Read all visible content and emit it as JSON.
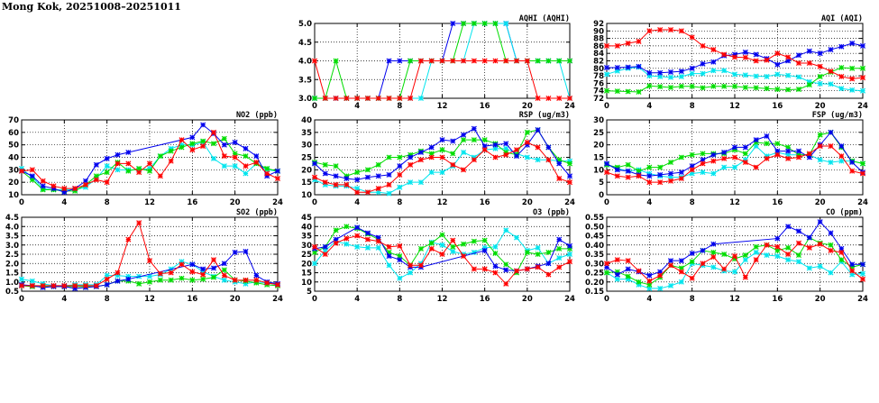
{
  "title": "Mong Kok, 20251008–20251011",
  "colors": {
    "red": "#ff0000",
    "green": "#00dd00",
    "blue": "#0000ee",
    "cyan": "#00e5ee"
  },
  "chart_data": [
    {
      "type": "line",
      "title": "AQHI (AQHI)",
      "xlim": [
        0,
        24
      ],
      "xticks": [
        0,
        4,
        8,
        12,
        16,
        20,
        24
      ],
      "ylim": [
        3.0,
        5.0
      ],
      "yticks": [
        "3.0",
        "3.5",
        "4.0",
        "4.5",
        "5.0"
      ],
      "grid": true,
      "series": [
        {
          "color": "#0000ee",
          "values": [
            3,
            3,
            3,
            3,
            3,
            3,
            3,
            4,
            4,
            4,
            4,
            4,
            4,
            5,
            5,
            5,
            5,
            5,
            5,
            4,
            4,
            4,
            4,
            4,
            4
          ]
        },
        {
          "color": "#00e5ee",
          "values": [
            3,
            3,
            3,
            3,
            3,
            3,
            3,
            3,
            3,
            3,
            3,
            4,
            4,
            4,
            4,
            5,
            5,
            5,
            5,
            4,
            4,
            4,
            4,
            4,
            3
          ]
        },
        {
          "color": "#00dd00",
          "values": [
            3,
            3,
            4,
            3,
            3,
            3,
            3,
            3,
            3,
            4,
            4,
            4,
            4,
            4,
            5,
            5,
            5,
            5,
            4,
            4,
            4,
            4,
            4,
            4,
            4
          ]
        },
        {
          "color": "#ff0000",
          "values": [
            4,
            3,
            3,
            3,
            3,
            3,
            3,
            3,
            3,
            3,
            4,
            4,
            4,
            4,
            4,
            4,
            4,
            4,
            4,
            4,
            4,
            3,
            3,
            3,
            3
          ]
        }
      ]
    },
    {
      "type": "line",
      "title": "AQI (AQI)",
      "xlim": [
        0,
        24
      ],
      "xticks": [
        0,
        4,
        8,
        12,
        16,
        20,
        24
      ],
      "ylim": [
        72,
        92
      ],
      "yticks": [
        "72",
        "74",
        "76",
        "78",
        "80",
        "82",
        "84",
        "86",
        "88",
        "90",
        "92"
      ],
      "grid": true,
      "series": [
        {
          "color": "#00e5ee",
          "values": [
            78.4,
            79.3,
            80,
            80.3,
            78,
            77.8,
            77.6,
            77.8,
            78.6,
            78.6,
            79.4,
            79.4,
            78.4,
            78.2,
            77.9,
            77.8,
            78.4,
            78.1,
            77.7,
            76.4,
            75.9,
            75.8,
            74.6,
            74.2,
            74
          ]
        },
        {
          "color": "#00dd00",
          "values": [
            74,
            73.9,
            73.8,
            73.7,
            75.3,
            75.1,
            74.9,
            75.2,
            75.2,
            74.8,
            75.2,
            75.2,
            75.2,
            74.9,
            74.8,
            74.6,
            74.4,
            74.3,
            74.4,
            75.6,
            77.8,
            79,
            80.2,
            80,
            80
          ]
        },
        {
          "color": "#0000ee",
          "values": [
            80.2,
            80.2,
            80.3,
            80.5,
            78.8,
            78.8,
            79,
            79.2,
            80,
            81.2,
            81.7,
            83.4,
            83.7,
            84.3,
            83.7,
            82.6,
            81,
            82,
            83.5,
            84.6,
            84,
            85,
            85.8,
            86.7,
            86
          ]
        },
        {
          "color": "#ff0000",
          "values": [
            86,
            86,
            86.7,
            87.2,
            90,
            90.3,
            90.3,
            90,
            88.3,
            86,
            85,
            83.7,
            83,
            82.9,
            82,
            82.2,
            84,
            83,
            81.4,
            81.4,
            80.5,
            79.2,
            77.8,
            77.2,
            77.5
          ]
        }
      ]
    },
    {
      "type": "line",
      "title": "NO2 (ppb)",
      "xlim": [
        0,
        24
      ],
      "xticks": [
        0,
        4,
        8,
        12,
        16,
        20,
        24
      ],
      "ylim": [
        10,
        70
      ],
      "yticks": [
        "10",
        "20",
        "30",
        "40",
        "50",
        "60",
        "70"
      ],
      "grid": true,
      "series": [
        {
          "color": "#00e5ee",
          "values": [
            31,
            24,
            15,
            14,
            14,
            14,
            16,
            23,
            33,
            30,
            30,
            30,
            31,
            41,
            47,
            50,
            50,
            52,
            39,
            33,
            33,
            27,
            35,
            30,
            29
          ]
        },
        {
          "color": "#00dd00",
          "values": [
            29,
            22,
            14,
            14,
            13,
            13,
            18,
            25,
            28,
            36,
            29,
            31,
            29,
            41,
            45,
            48,
            51,
            53,
            51,
            55,
            43,
            41,
            35,
            31,
            29
          ]
        },
        {
          "color": "#0000ee",
          "values": [
            29,
            25,
            17,
            15,
            12,
            15,
            21,
            34,
            39,
            42,
            44,
            null,
            null,
            null,
            null,
            null,
            56,
            66,
            59,
            50,
            52,
            47,
            41,
            25,
            29
          ]
        },
        {
          "color": "#ff0000",
          "values": [
            29,
            30,
            21,
            17,
            15,
            15,
            18,
            22,
            20,
            35,
            35,
            28,
            35,
            25,
            37,
            54,
            46,
            49,
            60,
            41,
            40,
            33,
            36,
            27,
            23
          ]
        }
      ]
    },
    {
      "type": "line",
      "title": "RSP (ug/m3)",
      "xlim": [
        0,
        24
      ],
      "xticks": [
        0,
        4,
        8,
        12,
        16,
        20,
        24
      ],
      "ylim": [
        10,
        40
      ],
      "yticks": [
        "10",
        "15",
        "20",
        "25",
        "30",
        "35",
        "40"
      ],
      "grid": true,
      "series": [
        {
          "color": "#00e5ee",
          "values": [
            16,
            14,
            13.5,
            13.5,
            12.5,
            11,
            11,
            10.5,
            13,
            15,
            15,
            19,
            19,
            21.5,
            27,
            25,
            28,
            28.5,
            28.5,
            26.5,
            25,
            24,
            24,
            23.5,
            23.5
          ]
        },
        {
          "color": "#00dd00",
          "values": [
            23,
            22,
            21.5,
            17.5,
            19,
            20,
            22,
            25,
            25,
            26,
            27.5,
            26.5,
            28,
            26.5,
            32,
            32,
            32,
            30.5,
            27,
            26,
            35,
            36,
            29,
            24,
            22.5
          ]
        },
        {
          "color": "#0000ee",
          "values": [
            22.5,
            18.5,
            17.5,
            16.5,
            16,
            17,
            17.5,
            18,
            21.5,
            25,
            27,
            29,
            32,
            31.5,
            34,
            36.5,
            29.5,
            30,
            30.5,
            25.5,
            30,
            36,
            29,
            22.5,
            17.5
          ]
        },
        {
          "color": "#ff0000",
          "values": [
            17,
            15,
            14,
            14,
            11,
            11,
            12.5,
            14,
            18,
            22,
            24,
            25,
            25,
            22,
            20,
            24,
            28,
            25,
            26,
            28,
            31,
            29,
            24,
            16.5,
            15
          ]
        }
      ]
    },
    {
      "type": "line",
      "title": "FSP (ug/m3)",
      "xlim": [
        0,
        24
      ],
      "xticks": [
        0,
        4,
        8,
        12,
        16,
        20,
        24
      ],
      "ylim": [
        0,
        30
      ],
      "yticks": [
        "0",
        "5",
        "10",
        "15",
        "20",
        "25",
        "30"
      ],
      "grid": true,
      "series": [
        {
          "color": "#00e5ee",
          "values": [
            12,
            10.5,
            9.5,
            10,
            8.5,
            7.5,
            7,
            7,
            8.5,
            9,
            8.5,
            11,
            11,
            14,
            19.5,
            15.5,
            17,
            16,
            16,
            16,
            14,
            13,
            13.5,
            13.5,
            12.5
          ]
        },
        {
          "color": "#00dd00",
          "values": [
            12,
            11,
            12,
            9.5,
            11,
            11,
            13,
            15,
            16,
            16.5,
            16.5,
            16.5,
            18,
            16.5,
            21,
            20.5,
            20.5,
            19,
            16,
            16,
            24,
            25,
            19,
            13.5,
            12.5
          ]
        },
        {
          "color": "#0000ee",
          "values": [
            12.5,
            10,
            9.5,
            8,
            7.5,
            8,
            8.5,
            9,
            11.5,
            14,
            16,
            17,
            19,
            19,
            22,
            23.5,
            17.5,
            17.5,
            17.5,
            15,
            20,
            25,
            19.5,
            13,
            9
          ]
        },
        {
          "color": "#ff0000",
          "values": [
            9,
            7.5,
            7,
            7.5,
            5,
            5,
            5.5,
            6.5,
            10,
            12.5,
            13.5,
            14.5,
            15,
            13,
            11,
            14.5,
            16,
            14.5,
            15,
            16.5,
            19.5,
            19.5,
            15.5,
            9.5,
            8.5
          ]
        }
      ]
    },
    {
      "type": "line",
      "title": "SO2 (ppb)",
      "xlim": [
        0,
        24
      ],
      "xticks": [
        0,
        4,
        8,
        12,
        16,
        20,
        24
      ],
      "ylim": [
        0.5,
        4.5
      ],
      "yticks": [
        "0.5",
        "1.0",
        "1.5",
        "2.0",
        "2.5",
        "3.0",
        "3.5",
        "4.0",
        "4.5"
      ],
      "grid": true,
      "series": [
        {
          "color": "#00e5ee",
          "values": [
            1.15,
            1.05,
            0.9,
            0.8,
            0.8,
            0.85,
            0.85,
            0.85,
            1.35,
            1.35,
            1.3,
            1.3,
            1.3,
            1.4,
            1.7,
            2.1,
            1.95,
            1.55,
            1.3,
            1.1,
            1.0,
            0.9,
            1.0,
            0.95,
            0.85
          ]
        },
        {
          "color": "#00dd00",
          "values": [
            0.8,
            0.75,
            0.75,
            0.75,
            0.75,
            0.75,
            0.75,
            0.75,
            0.85,
            1.05,
            1.05,
            0.9,
            1.0,
            1.1,
            1.1,
            1.2,
            1.1,
            1.15,
            1.25,
            1.65,
            1.1,
            1.05,
            0.95,
            0.85,
            0.8
          ]
        },
        {
          "color": "#0000ee",
          "values": [
            0.85,
            0.8,
            0.7,
            0.75,
            0.75,
            0.65,
            0.7,
            0.75,
            0.85,
            1.05,
            1.15,
            null,
            null,
            null,
            null,
            null,
            1.95,
            1.7,
            1.75,
            2.0,
            2.6,
            2.65,
            1.35,
            1.0,
            0.9
          ]
        },
        {
          "color": "#ff0000",
          "values": [
            0.8,
            0.8,
            0.8,
            0.8,
            0.8,
            0.8,
            0.8,
            0.8,
            1.15,
            1.5,
            3.3,
            4.2,
            2.15,
            1.45,
            1.5,
            1.95,
            1.55,
            1.4,
            2.2,
            1.35,
            1.1,
            1.1,
            1.1,
            0.95,
            0.85
          ]
        }
      ]
    },
    {
      "type": "line",
      "title": "O3 (ppb)",
      "xlim": [
        0,
        24
      ],
      "xticks": [
        0,
        4,
        8,
        12,
        16,
        20,
        24
      ],
      "ylim": [
        5,
        45
      ],
      "yticks": [
        "5",
        "10",
        "15",
        "20",
        "25",
        "30",
        "35",
        "40",
        "45"
      ],
      "grid": true,
      "series": [
        {
          "color": "#00e5ee",
          "values": [
            20,
            27,
            32,
            30.5,
            29,
            28.5,
            28.5,
            19,
            12,
            15,
            20,
            31.5,
            30,
            26.5,
            25,
            26,
            28.5,
            29,
            38,
            34,
            27,
            28.5,
            20,
            23,
            25
          ]
        },
        {
          "color": "#00dd00",
          "values": [
            26,
            29,
            38,
            40,
            39,
            36,
            33,
            26,
            24,
            19,
            28,
            31,
            35.5,
            29,
            30.5,
            32,
            32.5,
            25.5,
            19.5,
            15,
            26,
            25,
            26,
            28,
            28
          ]
        },
        {
          "color": "#0000ee",
          "values": [
            28,
            29,
            33,
            null,
            39.5,
            36.5,
            34,
            24,
            22,
            18,
            18,
            null,
            null,
            null,
            null,
            null,
            27,
            18.5,
            16.5,
            16,
            17,
            18.5,
            20,
            33,
            29.5
          ]
        },
        {
          "color": "#ff0000",
          "values": [
            29,
            25,
            31,
            33.5,
            35,
            33,
            32,
            29,
            29.5,
            19,
            19,
            28,
            25,
            32.5,
            24,
            17,
            17,
            15,
            9,
            16,
            17,
            18,
            14,
            18,
            21
          ]
        }
      ]
    },
    {
      "type": "line",
      "title": "CO (ppm)",
      "xlim": [
        0,
        24
      ],
      "xticks": [
        0,
        4,
        8,
        12,
        16,
        20,
        24
      ],
      "ylim": [
        0.15,
        0.55
      ],
      "yticks": [
        "0.15",
        "0.20",
        "0.25",
        "0.30",
        "0.35",
        "0.40",
        "0.45",
        "0.50",
        "0.55"
      ],
      "grid": true,
      "series": [
        {
          "color": "#00e5ee",
          "values": [
            0.25,
            0.215,
            0.215,
            0.185,
            0.165,
            0.165,
            0.18,
            0.2,
            0.3,
            0.29,
            0.28,
            0.26,
            0.255,
            0.32,
            0.36,
            0.345,
            0.34,
            0.32,
            0.31,
            0.275,
            0.285,
            0.25,
            0.31,
            0.24,
            0.245
          ]
        },
        {
          "color": "#00dd00",
          "values": [
            0.25,
            0.255,
            0.23,
            0.2,
            0.185,
            0.225,
            0.29,
            0.275,
            0.31,
            0.37,
            0.36,
            0.35,
            0.325,
            0.345,
            0.39,
            0.4,
            0.37,
            0.385,
            0.345,
            0.44,
            0.41,
            0.4,
            0.32,
            0.28,
            0.295
          ]
        },
        {
          "color": "#0000ee",
          "values": [
            0.28,
            0.24,
            0.27,
            0.255,
            0.235,
            0.255,
            0.315,
            0.315,
            0.355,
            0.37,
            0.405,
            null,
            null,
            null,
            null,
            null,
            0.435,
            0.5,
            0.475,
            0.44,
            0.525,
            0.465,
            0.38,
            0.295,
            0.295
          ]
        },
        {
          "color": "#ff0000",
          "values": [
            0.3,
            0.32,
            0.315,
            0.26,
            0.205,
            0.235,
            0.29,
            0.255,
            0.22,
            0.3,
            0.335,
            0.27,
            0.34,
            0.225,
            0.32,
            0.4,
            0.39,
            0.35,
            0.41,
            0.385,
            0.405,
            0.37,
            0.36,
            0.26,
            0.215
          ]
        }
      ]
    }
  ]
}
